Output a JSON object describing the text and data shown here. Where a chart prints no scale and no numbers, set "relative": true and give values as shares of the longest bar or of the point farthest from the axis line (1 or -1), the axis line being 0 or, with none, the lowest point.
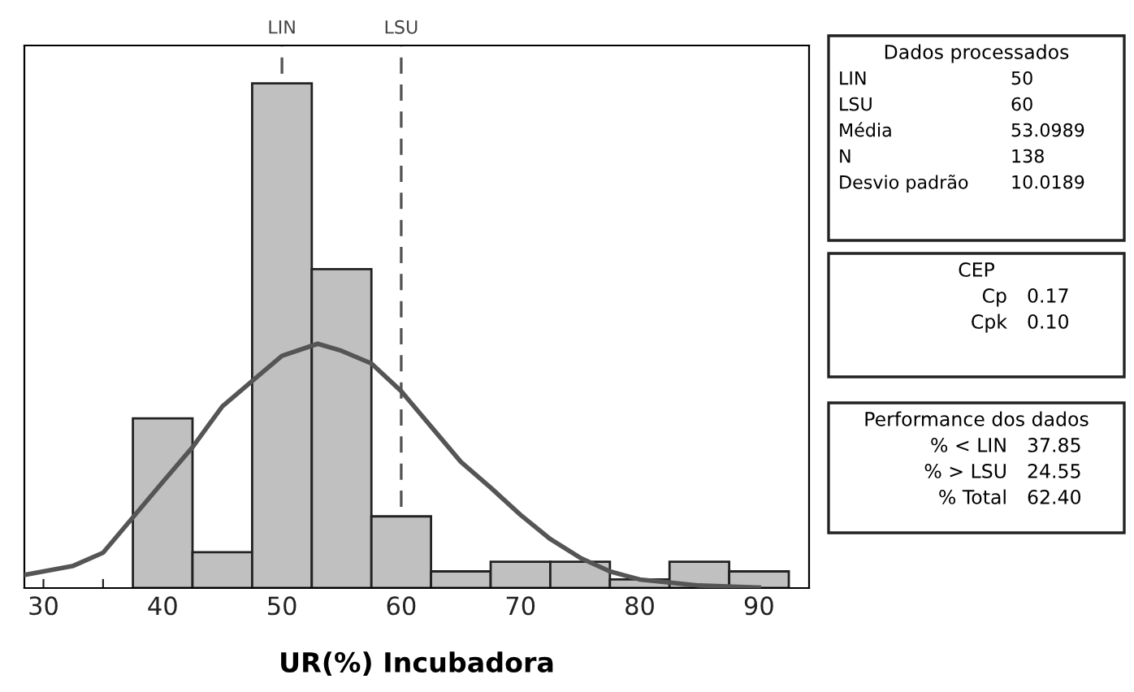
{
  "chart_data": {
    "type": "histogram",
    "relative": true,
    "xlabel": "UR(%) Incubadora",
    "xlim": [
      28.4,
      94.2
    ],
    "xticks": [
      30,
      {
        "value": 35,
        "label": null
      },
      40,
      {
        "value": 45,
        "label": null
      },
      50,
      {
        "value": 55,
        "label": null
      },
      60,
      {
        "value": 65,
        "label": null
      },
      70,
      {
        "value": 75,
        "label": null
      },
      80,
      {
        "value": 85,
        "label": null
      },
      90
    ],
    "grid": false,
    "legend": false,
    "series": [
      {
        "color": "#c0c0c0",
        "bins": [
          37.5,
          42.5,
          47.5,
          52.5,
          57.5,
          62.5,
          67.5,
          72.5,
          77.5,
          82.5,
          87.5,
          92.5
        ],
        "values": [
          0.336,
          0.071,
          1.0,
          0.632,
          0.142,
          0.033,
          0.052,
          0.052,
          0.017,
          0.052,
          0.033
        ]
      },
      {
        "type": "line",
        "color": "#555555",
        "line_style": "solid",
        "marker": "none",
        "x": [
          28.4,
          32.5,
          35,
          37.5,
          40,
          42.5,
          45,
          47.5,
          50,
          53,
          55,
          57.5,
          60,
          62.5,
          65,
          67.5,
          70,
          72.5,
          75,
          77.5,
          80,
          85,
          90
        ],
        "values": [
          0.026,
          0.044,
          0.07,
          0.14,
          0.21,
          0.279,
          0.36,
          0.41,
          0.46,
          0.484,
          0.47,
          0.445,
          0.39,
          0.32,
          0.25,
          0.199,
          0.145,
          0.097,
          0.06,
          0.033,
          0.017,
          0.005,
          0.001
        ]
      }
    ],
    "ref_lines": [
      {
        "axis": "x",
        "value": 50,
        "label": "LIN",
        "color": "#555555",
        "line_style": "dashed"
      },
      {
        "axis": "x",
        "value": 60,
        "label": "LSU",
        "color": "#555555",
        "line_style": "dashed"
      }
    ],
    "annotations": [
      "Dados processados",
      "LIN",
      "50",
      "LSU",
      "60",
      "Média",
      "53.0989",
      "N",
      "138",
      "Desvio padrão",
      "10.0189",
      "CEP",
      "Cp",
      "0.17",
      "Cpk",
      "0.10",
      "Performance dos dados",
      "% < LIN",
      "37.85",
      "% > LSU",
      "24.55",
      "% Total",
      "62.40"
    ]
  }
}
